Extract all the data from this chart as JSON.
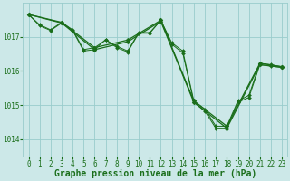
{
  "background_color": "#cce8e8",
  "grid_color": "#99cccc",
  "line_color": "#1a6e1a",
  "marker_color": "#1a6e1a",
  "xlabel": "Graphe pression niveau de la mer (hPa)",
  "xlabel_fontsize": 7,
  "tick_fontsize": 5.5,
  "xlim": [
    -0.5,
    23.5
  ],
  "ylim": [
    1013.5,
    1018.0
  ],
  "yticks": [
    1014,
    1015,
    1016,
    1017
  ],
  "xticks": [
    0,
    1,
    2,
    3,
    4,
    5,
    6,
    7,
    8,
    9,
    10,
    11,
    12,
    13,
    14,
    15,
    16,
    17,
    18,
    19,
    20,
    21,
    22,
    23
  ],
  "series": [
    {
      "x": [
        0,
        1,
        2,
        3,
        4,
        5,
        6,
        7,
        8,
        9,
        10,
        11,
        12,
        13,
        14,
        15,
        16,
        17,
        18,
        19,
        20,
        21,
        22,
        23
      ],
      "y": [
        1017.65,
        1017.35,
        1017.2,
        1017.42,
        1017.2,
        1016.62,
        1016.68,
        1016.9,
        1016.72,
        1016.58,
        1017.12,
        1017.12,
        1017.48,
        1016.82,
        1016.58,
        1015.12,
        1014.88,
        1014.38,
        1014.38,
        1015.12,
        1015.28,
        1016.22,
        1016.18,
        1016.12
      ]
    },
    {
      "x": [
        0,
        1,
        2,
        3,
        4,
        5,
        6,
        7,
        8,
        9,
        10,
        11,
        12,
        13,
        14,
        15,
        16,
        17,
        18,
        19,
        20,
        21,
        22,
        23
      ],
      "y": [
        1017.65,
        1017.32,
        1017.18,
        1017.4,
        1017.18,
        1016.58,
        1016.62,
        1016.92,
        1016.68,
        1016.55,
        1017.1,
        1017.1,
        1017.48,
        1016.78,
        1016.52,
        1015.08,
        1014.82,
        1014.32,
        1014.32,
        1015.08,
        1015.22,
        1016.18,
        1016.14,
        1016.1
      ]
    },
    {
      "x": [
        0,
        3,
        6,
        9,
        12,
        15,
        18,
        21,
        23
      ],
      "y": [
        1017.65,
        1017.42,
        1016.68,
        1016.9,
        1017.48,
        1015.12,
        1014.38,
        1016.22,
        1016.12
      ]
    },
    {
      "x": [
        0,
        3,
        6,
        9,
        12,
        15,
        18,
        21,
        23
      ],
      "y": [
        1017.65,
        1017.4,
        1016.62,
        1016.85,
        1017.45,
        1015.08,
        1014.32,
        1016.18,
        1016.1
      ]
    }
  ]
}
